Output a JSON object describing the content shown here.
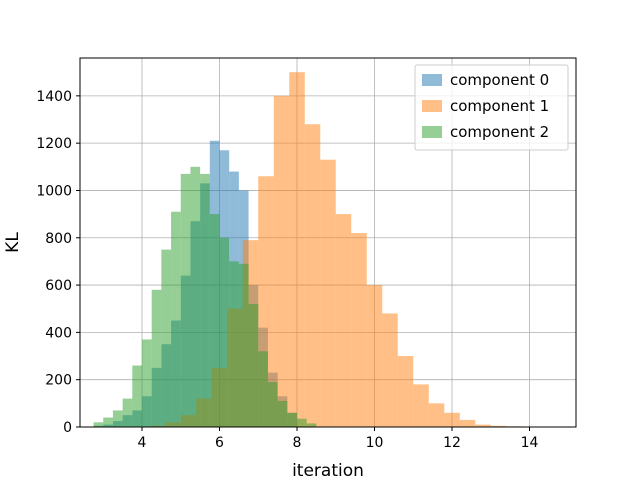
{
  "chart_data": {
    "type": "bar",
    "subtype": "overlaid-histogram",
    "title": "",
    "xlabel": "iteration",
    "ylabel": "KL",
    "xlim": [
      2.4,
      15.2
    ],
    "ylim": [
      0,
      1560
    ],
    "xticks": [
      4,
      6,
      8,
      10,
      12,
      14
    ],
    "yticks": [
      0,
      200,
      400,
      600,
      800,
      1000,
      1200,
      1400
    ],
    "grid": true,
    "legend_position": "top-right",
    "series": [
      {
        "name": "component 0",
        "color": "#1f77b4",
        "opacity": 0.5,
        "bin_edges": [
          2.75,
          3.0,
          3.25,
          3.5,
          3.75,
          4.0,
          4.25,
          4.5,
          4.75,
          5.0,
          5.25,
          5.5,
          5.75,
          6.0,
          6.25,
          6.5,
          6.75,
          7.0,
          7.25,
          7.5,
          7.75,
          8.0
        ],
        "values": [
          5,
          10,
          25,
          50,
          70,
          130,
          250,
          350,
          450,
          640,
          870,
          1030,
          1210,
          1170,
          1080,
          1000,
          600,
          420,
          230,
          130,
          60
        ]
      },
      {
        "name": "component 1",
        "color": "#ff7f0e",
        "opacity": 0.5,
        "bin_edges": [
          4.2,
          4.6,
          5.0,
          5.4,
          5.8,
          6.2,
          6.6,
          7.0,
          7.4,
          7.8,
          8.2,
          8.6,
          9.0,
          9.4,
          9.8,
          10.2,
          10.6,
          11.0,
          11.4,
          11.8,
          12.2,
          12.6,
          13.0,
          13.4,
          13.8,
          14.2,
          14.6
        ],
        "values": [
          5,
          20,
          50,
          120,
          250,
          500,
          790,
          1060,
          1400,
          1500,
          1280,
          1130,
          900,
          820,
          600,
          480,
          300,
          180,
          100,
          60,
          30,
          10,
          5,
          3,
          2,
          1
        ]
      },
      {
        "name": "component 2",
        "color": "#2ca02c",
        "opacity": 0.5,
        "bin_edges": [
          2.75,
          3.0,
          3.25,
          3.5,
          3.75,
          4.0,
          4.25,
          4.5,
          4.75,
          5.0,
          5.25,
          5.5,
          5.75,
          6.0,
          6.25,
          6.5,
          6.75,
          7.0,
          7.25,
          7.5,
          7.75,
          8.0,
          8.25,
          8.5
        ],
        "values": [
          20,
          40,
          70,
          120,
          260,
          370,
          580,
          750,
          910,
          1070,
          1100,
          1070,
          900,
          800,
          700,
          690,
          520,
          320,
          190,
          110,
          60,
          35,
          15
        ]
      }
    ]
  }
}
